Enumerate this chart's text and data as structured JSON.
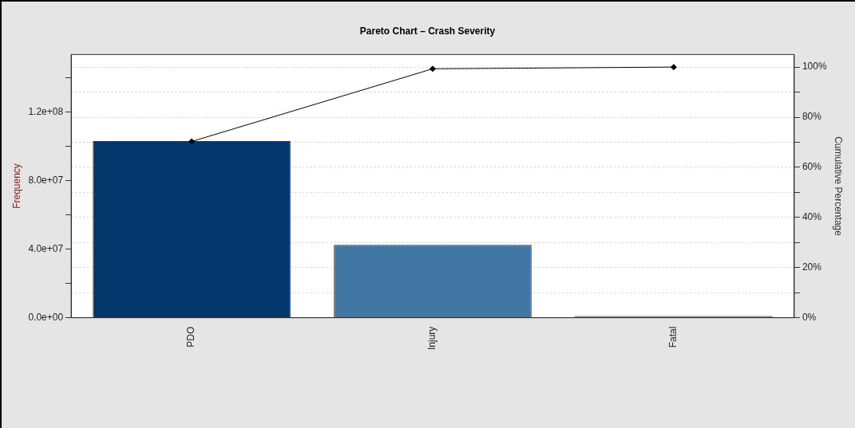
{
  "chart_data": {
    "type": "bar",
    "title": "Pareto Chart – Crash Severity",
    "ylabel": "Frequency",
    "y2label": "Cumulative Percentage",
    "categories": [
      "PDO",
      "Injury",
      "Fatal"
    ],
    "series": [
      {
        "colors": [
          "#03366a",
          "#4277a3",
          "#6a7b8a"
        ],
        "values": [
          102900000,
          42400000,
          1000000
        ]
      },
      {
        "type": "line",
        "axis": "y2",
        "color": "#000000",
        "marker": "diamond",
        "values": [
          70.3,
          99.3,
          100
        ]
      }
    ],
    "ylim": [
      0,
      153400000
    ],
    "yticks": [
      {
        "value": 0,
        "label": "0.0e+00"
      },
      {
        "value": 20000000,
        "label": null
      },
      {
        "value": 40000000,
        "label": "4.0e+07"
      },
      {
        "value": 60000000,
        "label": null
      },
      {
        "value": 80000000,
        "label": "8.0e+07"
      },
      {
        "value": 100000000,
        "label": null
      },
      {
        "value": 120000000,
        "label": "1.2e+08"
      },
      {
        "value": 140000000,
        "label": null
      }
    ],
    "y2lim": [
      0,
      105
    ],
    "y2ticks": [
      {
        "value": 0,
        "label": "0%"
      },
      {
        "value": 10,
        "label": null
      },
      {
        "value": 20,
        "label": "20%"
      },
      {
        "value": 30,
        "label": null
      },
      {
        "value": 40,
        "label": "40%"
      },
      {
        "value": 50,
        "label": null
      },
      {
        "value": 60,
        "label": "60%"
      },
      {
        "value": 70,
        "label": null
      },
      {
        "value": 80,
        "label": "80%"
      },
      {
        "value": 90,
        "label": null
      },
      {
        "value": 100,
        "label": "100%"
      }
    ],
    "grid": "y2"
  }
}
